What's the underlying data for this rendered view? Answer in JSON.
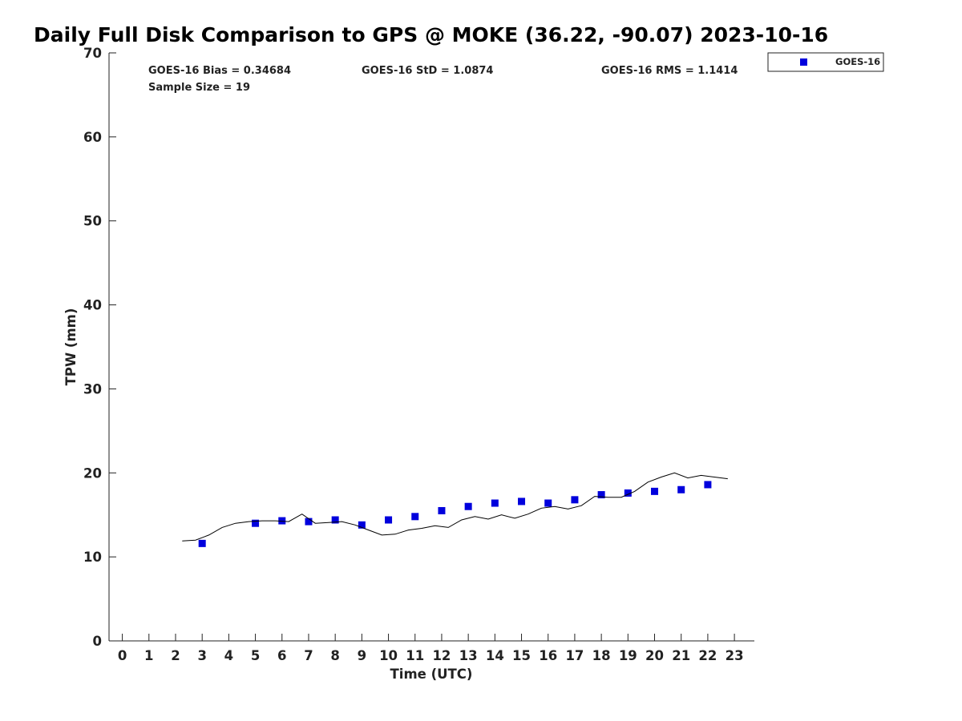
{
  "chart_data": {
    "type": "scatter",
    "title": "Daily Full Disk Comparison to GPS @ MOKE (36.22, -90.07) 2023-10-16",
    "xlabel": "Time (UTC)",
    "ylabel": "TPW (mm)",
    "xlim": [
      -0.5,
      23.75
    ],
    "ylim": [
      0,
      70
    ],
    "xticks": [
      "0",
      "1",
      "2",
      "3",
      "4",
      "5",
      "6",
      "7",
      "8",
      "9",
      "10",
      "11",
      "12",
      "13",
      "14",
      "15",
      "16",
      "17",
      "18",
      "19",
      "20",
      "21",
      "22",
      "23"
    ],
    "yticks": [
      "0",
      "10",
      "20",
      "30",
      "40",
      "50",
      "60",
      "70"
    ],
    "stats": {
      "bias": "GOES-16 Bias = 0.34684",
      "std": "GOES-16 StD = 1.0874",
      "rms": "GOES-16 RMS = 1.1414",
      "sample": "Sample Size = 19"
    },
    "legend": {
      "placement": "outside-top-right",
      "entries": [
        "GOES-16"
      ]
    },
    "series": [
      {
        "name": "GOES-16",
        "style": "marker",
        "color": "#0000dd",
        "x": [
          3,
          5,
          6,
          7,
          8,
          9,
          10,
          11,
          12,
          13,
          14,
          15,
          16,
          17,
          18,
          19,
          20,
          21,
          22
        ],
        "y": [
          11.6,
          14.0,
          14.3,
          14.2,
          14.4,
          13.8,
          14.4,
          14.8,
          15.5,
          16.0,
          16.4,
          16.6,
          16.4,
          16.8,
          17.4,
          17.6,
          17.8,
          18.0,
          18.6
        ]
      },
      {
        "style": "line",
        "color": "#000000",
        "x": [
          2.25,
          2.75,
          3.25,
          3.75,
          4.25,
          4.75,
          5.25,
          5.75,
          6.25,
          6.75,
          7.25,
          7.75,
          8.25,
          8.75,
          9.25,
          9.75,
          10.25,
          10.75,
          11.25,
          11.75,
          12.25,
          12.75,
          13.25,
          13.75,
          14.25,
          14.75,
          15.25,
          15.75,
          16.25,
          16.75,
          17.25,
          17.75,
          18.25,
          18.75,
          19.25,
          19.75,
          20.25,
          20.75,
          21.25,
          21.75,
          22.25,
          22.75
        ],
        "y": [
          11.9,
          12.0,
          12.6,
          13.5,
          14.0,
          14.2,
          14.3,
          14.3,
          14.2,
          15.1,
          14.0,
          14.1,
          14.2,
          13.8,
          13.2,
          12.6,
          12.7,
          13.2,
          13.4,
          13.7,
          13.5,
          14.4,
          14.8,
          14.5,
          15.0,
          14.6,
          15.1,
          15.8,
          16.0,
          15.7,
          16.1,
          17.2,
          17.1,
          17.1,
          17.8,
          18.9,
          19.5,
          20.0,
          19.4,
          19.7,
          19.5,
          19.3
        ]
      }
    ]
  }
}
